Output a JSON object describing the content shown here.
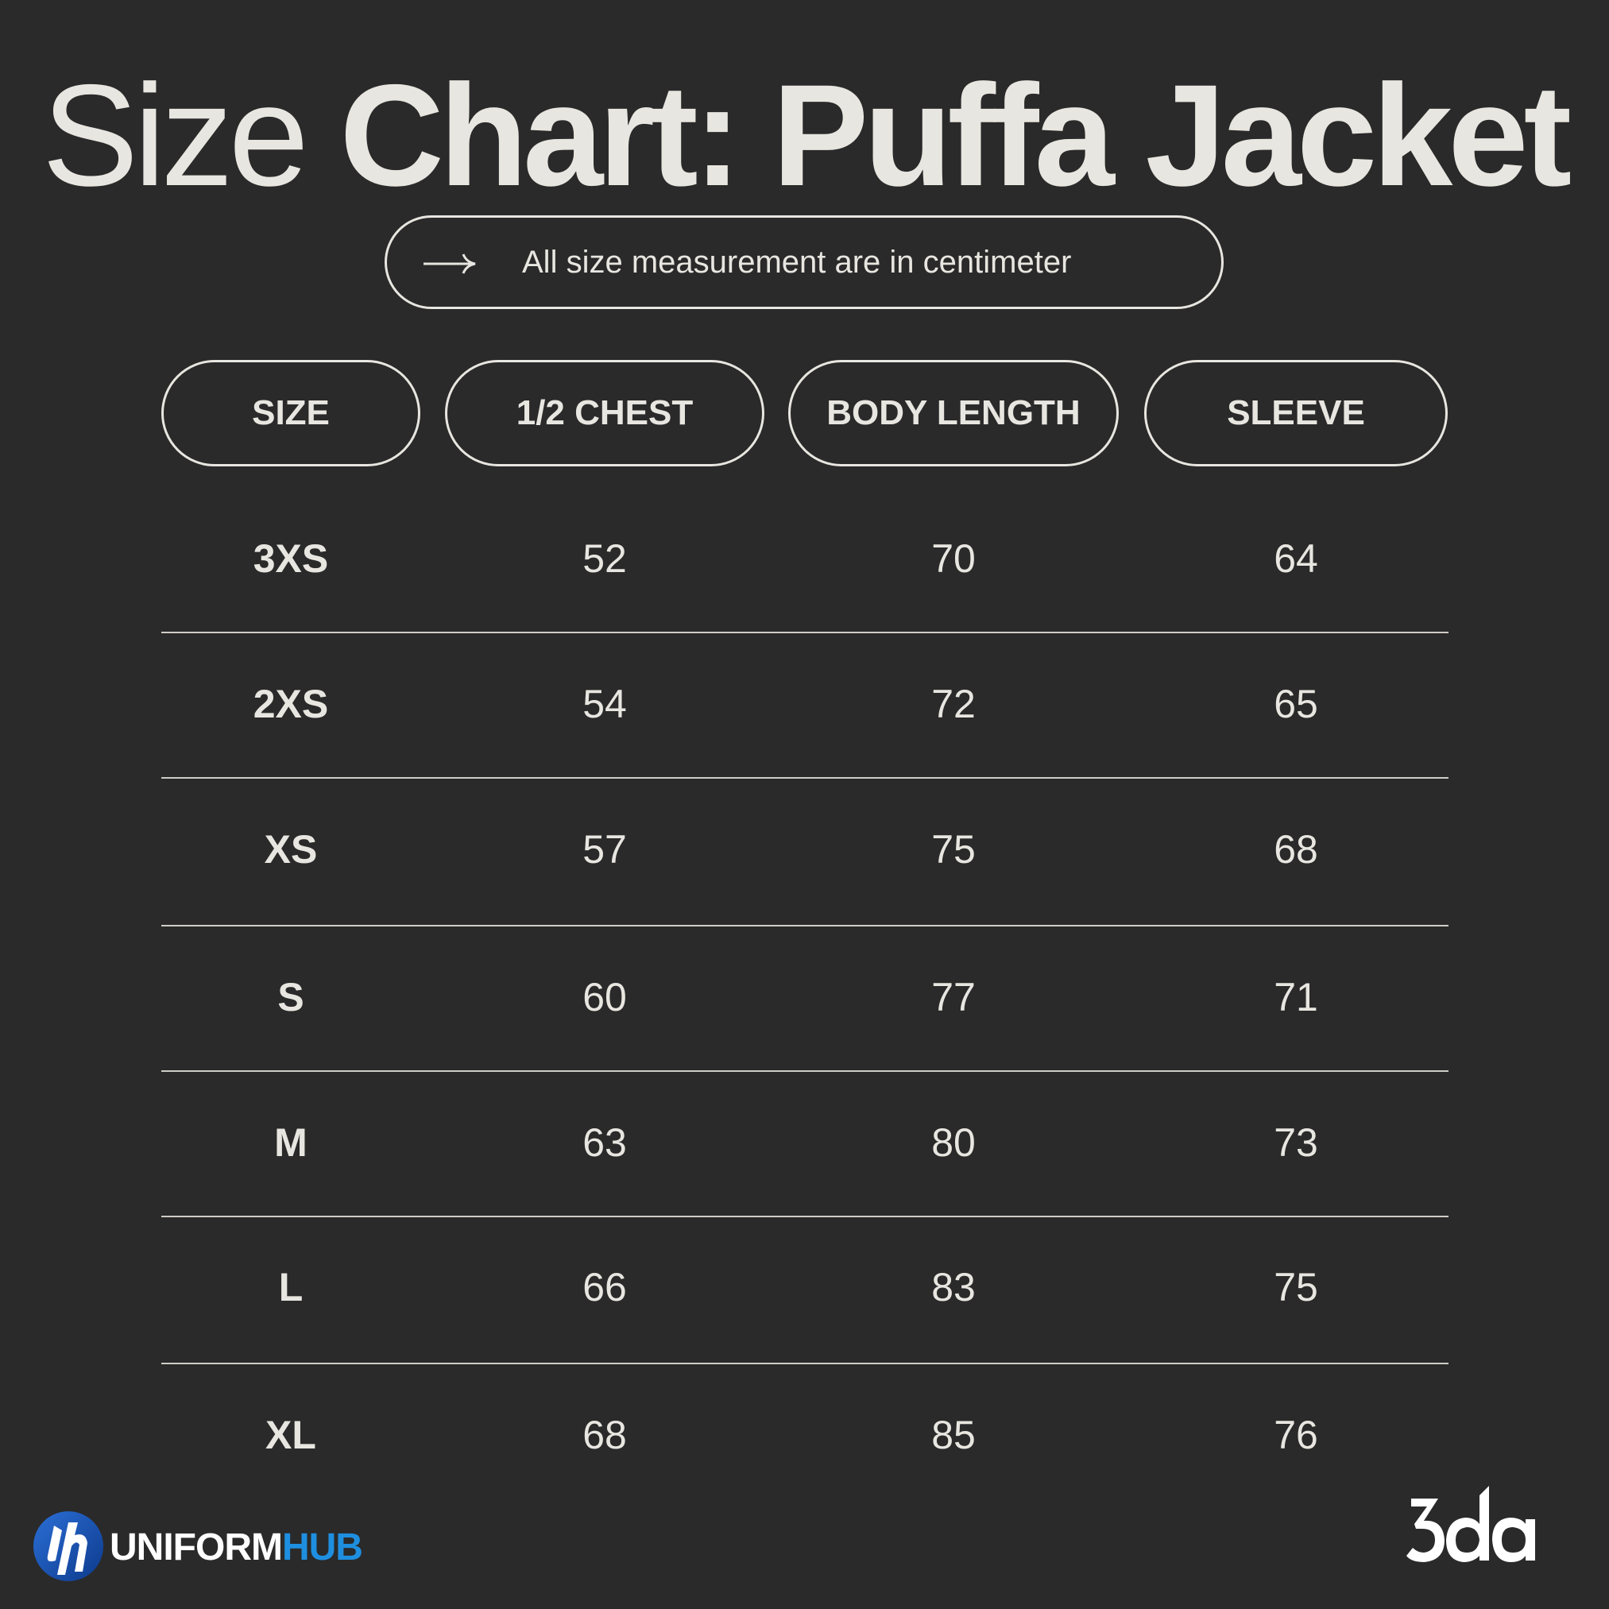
{
  "title": {
    "light": "Size",
    "bold": "Chart:  Puffa Jacket"
  },
  "note": {
    "icon": "arrow-right-icon",
    "text": "All size measurement are in centimeter"
  },
  "columns": [
    "SIZE",
    "1/2 CHEST",
    "BODY LENGTH",
    "SLEEVE"
  ],
  "rows": [
    {
      "size": "3XS",
      "chest": "52",
      "length": "70",
      "sleeve": "64"
    },
    {
      "size": "2XS",
      "chest": "54",
      "length": "72",
      "sleeve": "65"
    },
    {
      "size": "XS",
      "chest": "57",
      "length": "75",
      "sleeve": "68"
    },
    {
      "size": "S",
      "chest": "60",
      "length": "77",
      "sleeve": "71"
    },
    {
      "size": "M",
      "chest": "63",
      "length": "80",
      "sleeve": "73"
    },
    {
      "size": "L",
      "chest": "66",
      "length": "83",
      "sleeve": "75"
    },
    {
      "size": "XL",
      "chest": "68",
      "length": "85",
      "sleeve": "76"
    }
  ],
  "brand_left": {
    "part1": "UNIFORM",
    "part2": "HUB",
    "accent": "#1e8fe0",
    "icon": "uniformhub-logo-icon"
  },
  "brand_right": {
    "wordmark": "3da",
    "icon": "3da-logo-icon"
  },
  "colors": {
    "background": "#2a2a2a",
    "foreground": "#e8e6e0"
  }
}
